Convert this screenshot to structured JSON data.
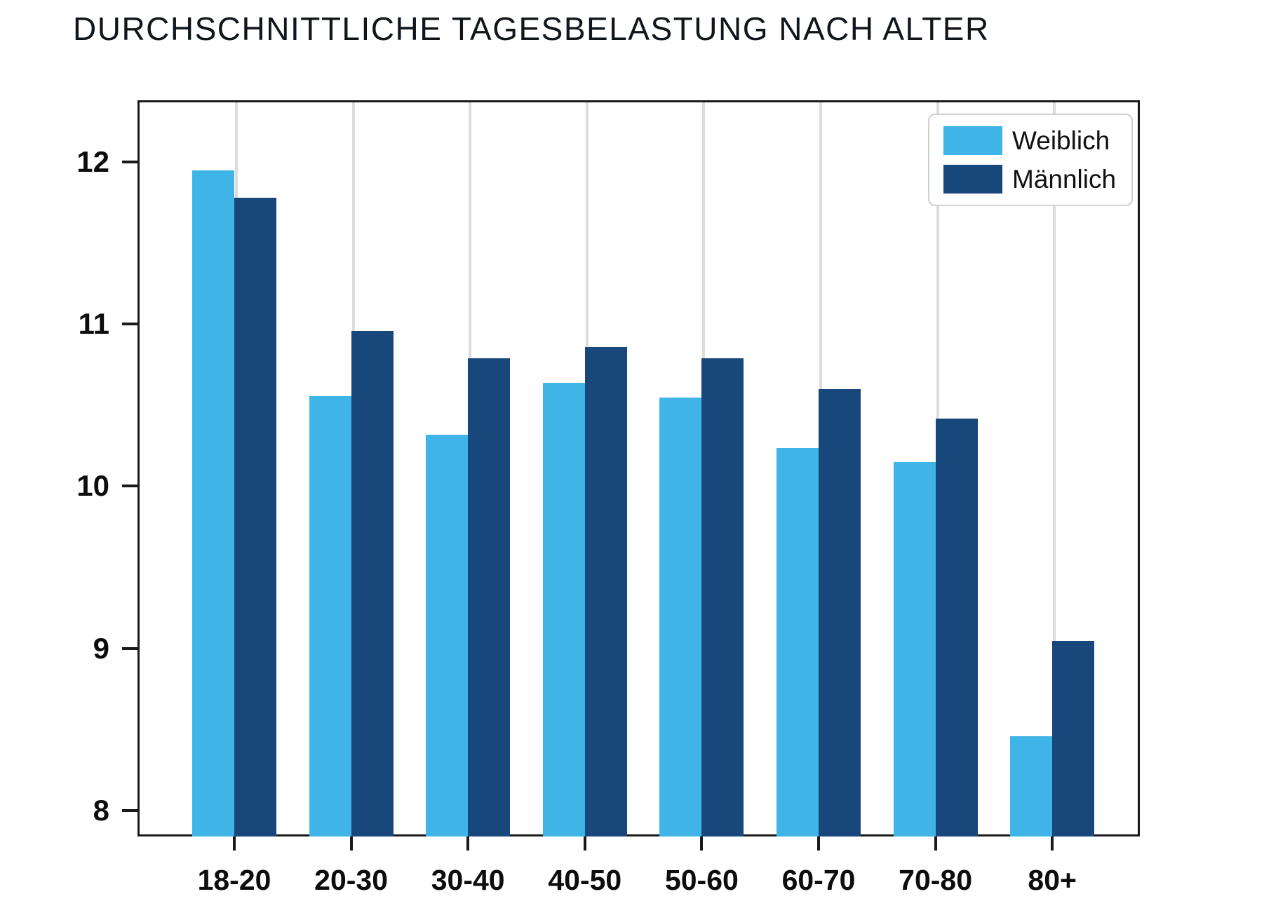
{
  "chart_data": {
    "type": "bar",
    "title": "DURCHSCHNITTLICHE TAGESBELASTUNG NACH ALTER",
    "categories": [
      "18-20",
      "20-30",
      "30-40",
      "40-50",
      "50-60",
      "60-70",
      "70-80",
      "80+"
    ],
    "series": [
      {
        "name": "Weiblich",
        "color": "#3FB4E6",
        "values": [
          11.96,
          10.57,
          10.33,
          10.65,
          10.56,
          10.25,
          10.16,
          8.47
        ]
      },
      {
        "name": "Männlich",
        "color": "#17477B",
        "values": [
          11.79,
          10.97,
          10.8,
          10.87,
          10.8,
          10.61,
          10.43,
          9.06
        ]
      }
    ],
    "xlabel": "",
    "ylabel": "",
    "yticks": [
      8,
      9,
      10,
      11,
      12
    ],
    "ylim": [
      7.84,
      12.38
    ],
    "grid": "vertical-only",
    "grid_color": "#dcdcdc",
    "axis_color": "#1a1a1a",
    "legend_position": "upper-right"
  }
}
